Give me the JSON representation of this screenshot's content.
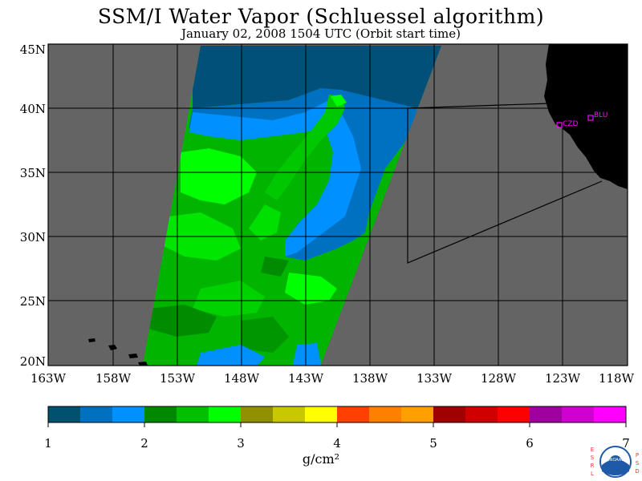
{
  "title": "SSM/I Water Vapor (Schluessel algorithm)",
  "subtitle": "January 02, 2008  1504 UTC  (Orbit start time)",
  "lat_labels": [
    "45N",
    "40N",
    "35N",
    "30N",
    "25N",
    "20N"
  ],
  "lon_labels": [
    "163W",
    "158W",
    "153W",
    "148W",
    "143W",
    "138W",
    "133W",
    "128W",
    "123W",
    "118W"
  ],
  "stations": [
    {
      "label": "CZD"
    },
    {
      "label": "BLU"
    }
  ],
  "colorbar": {
    "ticks": [
      "1",
      "2",
      "3",
      "4",
      "5",
      "6",
      "7"
    ],
    "unit": "g/cm²",
    "colors": [
      "#005070",
      "#0070c0",
      "#0090ff",
      "#008800",
      "#00c000",
      "#00ff00",
      "#909000",
      "#c8c800",
      "#ffff00",
      "#ff4000",
      "#ff8000",
      "#ffa000",
      "#a00000",
      "#d00000",
      "#ff0000",
      "#a000a0",
      "#d000d0",
      "#ff00ff"
    ]
  },
  "colors": {
    "ocean": "#646464",
    "land": "#000000",
    "station": "#ff00ff"
  },
  "logo": {
    "left_letters": "ESRL",
    "right_letters": "PSD",
    "badge_text": "NOAA"
  }
}
